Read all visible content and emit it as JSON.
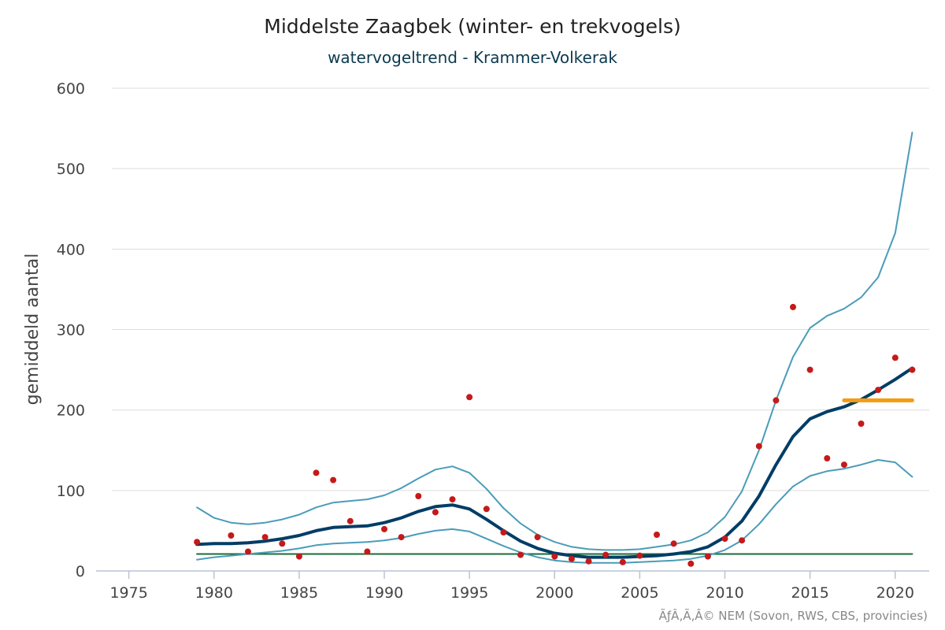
{
  "chart_data": {
    "type": "line",
    "title": "Middelste Zaagbek (winter- en trekvogels)",
    "subtitle": "watervogeltrend - Krammer-Volkerak",
    "xlabel": "",
    "ylabel": "gemiddeld aantal",
    "xlim": [
      1974,
      2022
    ],
    "ylim": [
      0,
      600
    ],
    "x_ticks": [
      1975,
      1980,
      1985,
      1990,
      1995,
      2000,
      2005,
      2010,
      2015,
      2020
    ],
    "y_ticks": [
      0,
      100,
      200,
      300,
      400,
      500,
      600
    ],
    "grid": true,
    "legend": "none",
    "credit": "ÃƒÂ‚Ã‚Â© NEM (Sovon, RWS, CBS, provincies)",
    "colors": {
      "trend": "#003d66",
      "bounds": "#4a9cb8",
      "observed": "#c41a1a",
      "reference": "#1b6b3a",
      "recent": "#f39c12"
    },
    "series": [
      {
        "role": "trend",
        "x": [
          1979,
          1980,
          1981,
          1982,
          1983,
          1984,
          1985,
          1986,
          1987,
          1988,
          1989,
          1990,
          1991,
          1992,
          1993,
          1994,
          1995,
          1996,
          1997,
          1998,
          1999,
          2000,
          2001,
          2002,
          2003,
          2004,
          2005,
          2006,
          2007,
          2008,
          2009,
          2010,
          2011,
          2012,
          2013,
          2014,
          2015,
          2016,
          2017,
          2018,
          2019,
          2020,
          2021
        ],
        "values": [
          33,
          34,
          34,
          35,
          37,
          40,
          44,
          50,
          54,
          55,
          56,
          60,
          66,
          74,
          80,
          82,
          77,
          64,
          50,
          37,
          28,
          22,
          19,
          17,
          17,
          17,
          18,
          19,
          21,
          24,
          30,
          42,
          62,
          93,
          132,
          167,
          189,
          198,
          204,
          213,
          225,
          238,
          252
        ]
      },
      {
        "role": "upper-bound",
        "x": [
          1979,
          1980,
          1981,
          1982,
          1983,
          1984,
          1985,
          1986,
          1987,
          1988,
          1989,
          1990,
          1991,
          1992,
          1993,
          1994,
          1995,
          1996,
          1997,
          1998,
          1999,
          2000,
          2001,
          2002,
          2003,
          2004,
          2005,
          2006,
          2007,
          2008,
          2009,
          2010,
          2011,
          2012,
          2013,
          2014,
          2015,
          2016,
          2017,
          2018,
          2019,
          2020,
          2021
        ],
        "values": [
          79,
          66,
          60,
          58,
          60,
          64,
          70,
          79,
          85,
          87,
          89,
          94,
          103,
          115,
          126,
          130,
          122,
          102,
          78,
          59,
          45,
          36,
          30,
          27,
          26,
          26,
          27,
          30,
          33,
          38,
          48,
          67,
          99,
          150,
          212,
          266,
          302,
          317,
          326,
          340,
          365,
          420,
          545
        ]
      },
      {
        "role": "lower-bound",
        "x": [
          1979,
          1980,
          1981,
          1982,
          1983,
          1984,
          1985,
          1986,
          1987,
          1988,
          1989,
          1990,
          1991,
          1992,
          1993,
          1994,
          1995,
          1996,
          1997,
          1998,
          1999,
          2000,
          2001,
          2002,
          2003,
          2004,
          2005,
          2006,
          2007,
          2008,
          2009,
          2010,
          2011,
          2012,
          2013,
          2014,
          2015,
          2016,
          2017,
          2018,
          2019,
          2020,
          2021
        ],
        "values": [
          14,
          17,
          19,
          21,
          23,
          25,
          28,
          32,
          34,
          35,
          36,
          38,
          41,
          46,
          50,
          52,
          49,
          40,
          31,
          23,
          17,
          13,
          11,
          10,
          10,
          10,
          11,
          12,
          13,
          15,
          19,
          26,
          38,
          58,
          83,
          105,
          118,
          124,
          127,
          132,
          138,
          135,
          117
        ]
      },
      {
        "role": "observed",
        "type": "scatter",
        "x": [
          1979,
          1981,
          1982,
          1983,
          1984,
          1985,
          1986,
          1987,
          1988,
          1989,
          1990,
          1991,
          1992,
          1993,
          1994,
          1995,
          1996,
          1997,
          1998,
          1999,
          2000,
          2001,
          2002,
          2003,
          2004,
          2005,
          2006,
          2007,
          2008,
          2009,
          2010,
          2011,
          2012,
          2013,
          2014,
          2015,
          2016,
          2017,
          2018,
          2019,
          2020,
          2021
        ],
        "values": [
          36,
          44,
          24,
          42,
          34,
          18,
          122,
          113,
          62,
          24,
          52,
          42,
          93,
          73,
          89,
          216,
          77,
          48,
          20,
          42,
          18,
          15,
          12,
          20,
          11,
          19,
          45,
          34,
          9,
          18,
          40,
          38,
          155,
          212,
          328,
          250,
          140,
          132,
          183,
          225,
          265,
          250
        ]
      },
      {
        "role": "reference",
        "x": [
          1979,
          2021
        ],
        "values": [
          21,
          21
        ]
      },
      {
        "role": "recent",
        "x": [
          2017,
          2021
        ],
        "values": [
          212,
          212
        ]
      }
    ]
  }
}
